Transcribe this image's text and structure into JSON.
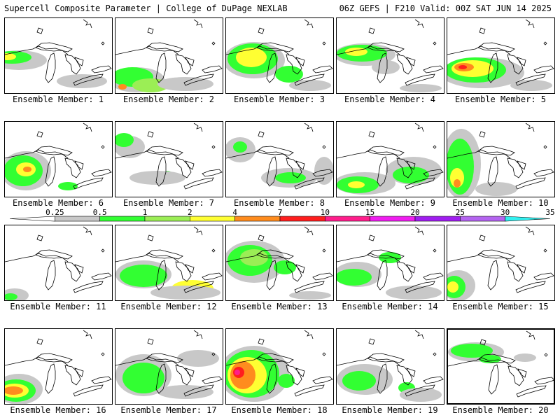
{
  "header": {
    "title": "Supercell Composite Parameter | College of DuPage NEXLAB",
    "run_info": "06Z GEFS | F210 Valid: 00Z SAT JUN 14 2025"
  },
  "legend": {
    "ticks": [
      "0.25",
      "0.5",
      "1",
      "2",
      "4",
      "7",
      "10",
      "15",
      "20",
      "25",
      "30",
      "35"
    ],
    "colors": [
      "#ffffff",
      "#c8c8c8",
      "#32ff32",
      "#9bee55",
      "#ffff32",
      "#ff8c1e",
      "#ff1e1e",
      "#ff1e8c",
      "#f01ef0",
      "#a01ef0",
      "#b464f0",
      "#32f0f0"
    ]
  },
  "panels": [
    {
      "label": "Ensemble Member: 1"
    },
    {
      "label": "Ensemble Member: 2"
    },
    {
      "label": "Ensemble Member: 3"
    },
    {
      "label": "Ensemble Member: 4"
    },
    {
      "label": "Ensemble Member: 5"
    },
    {
      "label": "Ensemble Member: 6"
    },
    {
      "label": "Ensemble Member: 7"
    },
    {
      "label": "Ensemble Member: 8"
    },
    {
      "label": "Ensemble Member: 9"
    },
    {
      "label": "Ensemble Member: 10"
    },
    {
      "label": "Ensemble Member: 11"
    },
    {
      "label": "Ensemble Member: 12"
    },
    {
      "label": "Ensemble Member: 13"
    },
    {
      "label": "Ensemble Member: 14"
    },
    {
      "label": "Ensemble Member: 15"
    },
    {
      "label": "Ensemble Member: 16"
    },
    {
      "label": "Ensemble Member: 17"
    },
    {
      "label": "Ensemble Member: 18"
    },
    {
      "label": "Ensemble Member: 19"
    },
    {
      "label": "Ensemble Member: 20",
      "selected": true
    }
  ]
}
